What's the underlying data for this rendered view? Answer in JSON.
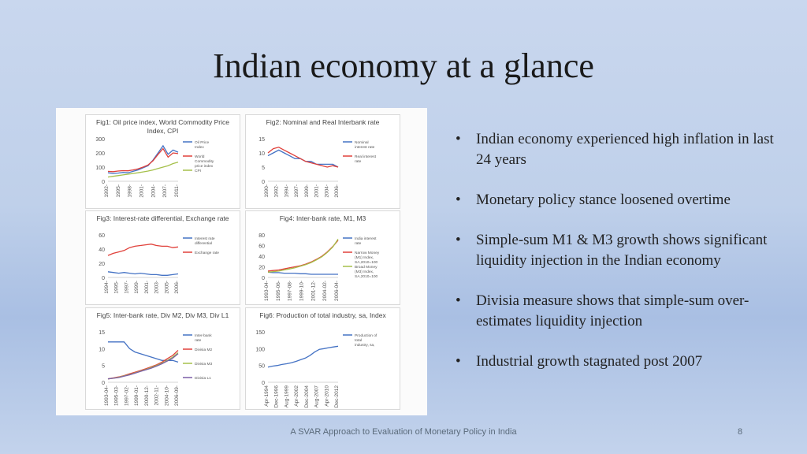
{
  "slide": {
    "title": "Indian economy at a glance",
    "footer": "A SVAR Approach to Evaluation of Monetary Policy in India",
    "page_number": "8"
  },
  "bullets": [
    "Indian economy experienced high inflation in last 24 years",
    "Monetary policy stance loosened overtime",
    "Simple-sum M1 & M3 growth shows significant liquidity injection in the Indian economy",
    "Divisia measure shows that simple-sum over-estimates liquidity injection",
    "Industrial growth stagnated post 2007"
  ],
  "chart_data": [
    {
      "type": "line",
      "title": "Fig1: Oil price index, World Commodity Price Index, CPI",
      "yticks": [
        "300",
        "200",
        "100",
        "0"
      ],
      "ylim": [
        0,
        300
      ],
      "xticks": [
        "1992-",
        "1995-",
        "1998-",
        "2001-",
        "2004-",
        "2007-",
        "2011-"
      ],
      "series": [
        {
          "name": "Oil Price Index",
          "color": "#4472c4",
          "values": [
            60,
            55,
            58,
            62,
            60,
            70,
            80,
            95,
            110,
            150,
            200,
            250,
            190,
            220,
            205
          ]
        },
        {
          "name": "World Commodity price index",
          "color": "#e0403a",
          "values": [
            70,
            68,
            72,
            75,
            74,
            80,
            88,
            100,
            115,
            145,
            190,
            230,
            170,
            200,
            195
          ]
        },
        {
          "name": "CPI",
          "color": "#a5c04a",
          "values": [
            30,
            35,
            40,
            45,
            50,
            55,
            60,
            66,
            72,
            80,
            90,
            100,
            110,
            125,
            135
          ]
        }
      ]
    },
    {
      "type": "line",
      "title": "Fig2: Nominal and Real Interbank rate",
      "yticks": [
        "15",
        "10",
        "5",
        "0"
      ],
      "ylim": [
        0,
        15
      ],
      "xticks": [
        "1990-",
        "1992-",
        "1994-",
        "1997-",
        "1999-",
        "2001-",
        "2004-",
        "2006-"
      ],
      "series": [
        {
          "name": "Nominal interest rate",
          "color": "#4472c4",
          "values": [
            9,
            10,
            11,
            10,
            9,
            8,
            8,
            7,
            7,
            6,
            6,
            6,
            6,
            5
          ]
        },
        {
          "name": "Real interest rate",
          "color": "#e0403a",
          "values": [
            10,
            11.5,
            12,
            11,
            10,
            9,
            8,
            7,
            6.5,
            6,
            5.5,
            5,
            5.5,
            5
          ]
        }
      ]
    },
    {
      "type": "line",
      "title": "Fig3: Interest-rate differential, Exchange rate",
      "yticks": [
        "60",
        "40",
        "20",
        "0"
      ],
      "ylim": [
        0,
        60
      ],
      "xticks": [
        "1994-",
        "1995-",
        "1997-",
        "1999-",
        "2001-",
        "2003-",
        "2005-",
        "2006-"
      ],
      "series": [
        {
          "name": "Interest rate differential",
          "color": "#4472c4",
          "values": [
            8,
            7,
            6,
            7,
            6,
            5,
            6,
            5,
            4,
            4,
            3,
            3,
            4,
            5
          ]
        },
        {
          "name": "Exchange rate",
          "color": "#e0403a",
          "values": [
            31,
            34,
            36,
            38,
            42,
            44,
            45,
            46,
            47,
            45,
            44,
            44,
            42,
            43
          ]
        }
      ]
    },
    {
      "type": "line",
      "title": "Fig4: Inter-bank rate, M1, M3",
      "yticks": [
        "80",
        "60",
        "40",
        "20",
        "0"
      ],
      "ylim": [
        0,
        80
      ],
      "xticks": [
        "1993-04-",
        "1995-06-",
        "1997-08-",
        "1999-10-",
        "2001-12-",
        "2004-02-",
        "2006-04-"
      ],
      "series": [
        {
          "name": "India interest rate",
          "color": "#4472c4",
          "values": [
            10,
            9,
            9,
            8,
            8,
            8,
            7,
            7,
            6,
            6,
            6,
            6,
            6,
            6
          ]
        },
        {
          "name": "Narrow Money (M1) Index, SA,2010=100",
          "color": "#e0403a",
          "values": [
            12,
            13,
            14,
            16,
            18,
            20,
            22,
            25,
            29,
            34,
            40,
            48,
            58,
            70
          ]
        },
        {
          "name": "Broad Money (M3) Index, SA,2010=100",
          "color": "#a5c04a",
          "values": [
            10,
            11,
            12,
            14,
            16,
            18,
            21,
            24,
            28,
            33,
            39,
            47,
            57,
            72
          ]
        }
      ]
    },
    {
      "type": "line",
      "title": "Fig5: Inter-bank rate, Div M2, Div M3, Div L1",
      "yticks": [
        "15",
        "10",
        "5",
        "0"
      ],
      "ylim": [
        0,
        15
      ],
      "xticks": [
        "1993-04-",
        "1995-03-",
        "1997-02-",
        "1999-01-",
        "2000-12-",
        "2002-11-",
        "2004-10-",
        "2006-09-"
      ],
      "series": [
        {
          "name": "Inter-bank rate",
          "color": "#4472c4",
          "values": [
            12,
            12,
            12,
            12,
            10,
            9,
            8.5,
            8,
            7.5,
            7,
            6.5,
            6.5,
            6.5,
            6
          ]
        },
        {
          "name": "Divisia M2",
          "color": "#e0403a",
          "values": [
            1,
            1.3,
            1.6,
            2,
            2.5,
            3,
            3.5,
            4,
            4.6,
            5.2,
            6,
            7,
            8,
            9.5
          ]
        },
        {
          "name": "Divisia M3",
          "color": "#a5c04a",
          "values": [
            1,
            1.2,
            1.5,
            1.9,
            2.3,
            2.8,
            3.3,
            3.8,
            4.4,
            5,
            5.7,
            6.5,
            7.5,
            8.8
          ]
        },
        {
          "name": "Divisia L1",
          "color": "#7b5ea7",
          "values": [
            1,
            1.2,
            1.4,
            1.8,
            2.2,
            2.7,
            3.2,
            3.7,
            4.2,
            4.8,
            5.5,
            6.3,
            7.2,
            8.5
          ]
        }
      ]
    },
    {
      "type": "line",
      "title": "Fig6: Production of total industry, sa, Index",
      "yticks": [
        "150",
        "100",
        "50",
        "0"
      ],
      "ylim": [
        0,
        150
      ],
      "xticks": [
        "Apr-1994",
        "Dec-1996",
        "Aug-1999",
        "Apr-2002",
        "Dec-2004",
        "Aug-2007",
        "Apr-2010",
        "Dec-2012"
      ],
      "series": [
        {
          "name": "Production of total industry, sa, Index",
          "color": "#4472c4",
          "values": [
            45,
            48,
            50,
            53,
            55,
            58,
            62,
            67,
            72,
            80,
            90,
            98,
            100,
            103,
            105,
            107
          ]
        }
      ]
    }
  ]
}
